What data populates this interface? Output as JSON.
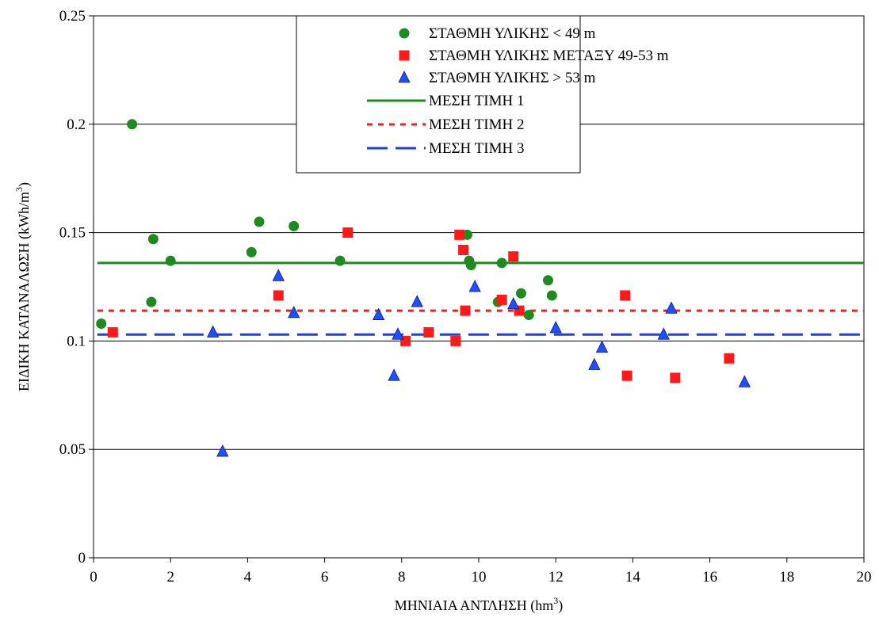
{
  "chart_data": {
    "type": "scatter",
    "xlabel": "ΜΗΝΙΑΙΑ ΑΝΤΛΗΣΗ (hm",
    "xlabel_sup": "3",
    "xlabel_tail": ")",
    "ylabel": "ΕΙΔΙΚΗ ΚΑΤΑΝΑΛΩΣΗ (kWh/m",
    "ylabel_sup": "3",
    "ylabel_tail": ")",
    "xlim": [
      0,
      20
    ],
    "ylim": [
      0,
      0.25
    ],
    "xticks": [
      "0",
      "2",
      "4",
      "6",
      "8",
      "10",
      "12",
      "14",
      "16",
      "18",
      "20"
    ],
    "yticks": [
      "0",
      "0.05",
      "0.1",
      "0.15",
      "0.2",
      "0.25"
    ],
    "grid": "horizontal",
    "legend_position": "top-right",
    "series": [
      {
        "name": "ΣΤΑΘΜΗ ΥΛΙΚΗΣ < 49 m",
        "marker": "circle",
        "color": "#1f8a1f",
        "points": [
          [
            0.2,
            0.108
          ],
          [
            1.0,
            0.2
          ],
          [
            1.5,
            0.118
          ],
          [
            1.55,
            0.147
          ],
          [
            2.0,
            0.137
          ],
          [
            4.1,
            0.141
          ],
          [
            4.3,
            0.155
          ],
          [
            5.2,
            0.153
          ],
          [
            6.4,
            0.137
          ],
          [
            9.7,
            0.149
          ],
          [
            9.75,
            0.137
          ],
          [
            9.8,
            0.135
          ],
          [
            10.5,
            0.118
          ],
          [
            10.6,
            0.136
          ],
          [
            11.1,
            0.122
          ],
          [
            11.3,
            0.112
          ],
          [
            11.8,
            0.128
          ],
          [
            11.9,
            0.121
          ]
        ]
      },
      {
        "name": "ΣΤΑΘΜΗ ΥΛΙΚΗΣ ΜΕΤΑΞΥ 49-53 m",
        "marker": "square",
        "color": "#ff1a1a",
        "points": [
          [
            0.5,
            0.104
          ],
          [
            4.8,
            0.121
          ],
          [
            6.6,
            0.15
          ],
          [
            8.1,
            0.1
          ],
          [
            8.7,
            0.104
          ],
          [
            9.4,
            0.1
          ],
          [
            9.5,
            0.149
          ],
          [
            9.6,
            0.142
          ],
          [
            9.65,
            0.114
          ],
          [
            10.6,
            0.119
          ],
          [
            10.9,
            0.139
          ],
          [
            11.05,
            0.114
          ],
          [
            13.8,
            0.121
          ],
          [
            13.85,
            0.084
          ],
          [
            15.1,
            0.083
          ],
          [
            16.5,
            0.092
          ]
        ]
      },
      {
        "name": "ΣΤΑΘΜΗ ΥΛΙΚΗΣ > 53 m",
        "marker": "triangle",
        "color": "#1f4fff",
        "points": [
          [
            3.1,
            0.104
          ],
          [
            3.35,
            0.049
          ],
          [
            4.8,
            0.13
          ],
          [
            5.2,
            0.113
          ],
          [
            7.4,
            0.112
          ],
          [
            7.8,
            0.084
          ],
          [
            7.9,
            0.103
          ],
          [
            8.4,
            0.118
          ],
          [
            9.9,
            0.125
          ],
          [
            10.9,
            0.117
          ],
          [
            12.0,
            0.106
          ],
          [
            13.0,
            0.089
          ],
          [
            13.2,
            0.097
          ],
          [
            14.8,
            0.103
          ],
          [
            15.0,
            0.115
          ],
          [
            16.9,
            0.081
          ]
        ]
      }
    ],
    "lines": [
      {
        "name": "ΜΕΣΗ ΤΙΜΗ 1",
        "y": 0.136,
        "color": "#1f8a1f",
        "style": "solid"
      },
      {
        "name": "ΜΕΣΗ ΤΙΜΗ 2",
        "y": 0.114,
        "color": "#ff1a1a",
        "style": "dotted"
      },
      {
        "name": "ΜΕΣΗ ΤΙΜΗ 3",
        "y": 0.103,
        "color": "#1f3fe0",
        "style": "dashed"
      }
    ]
  }
}
